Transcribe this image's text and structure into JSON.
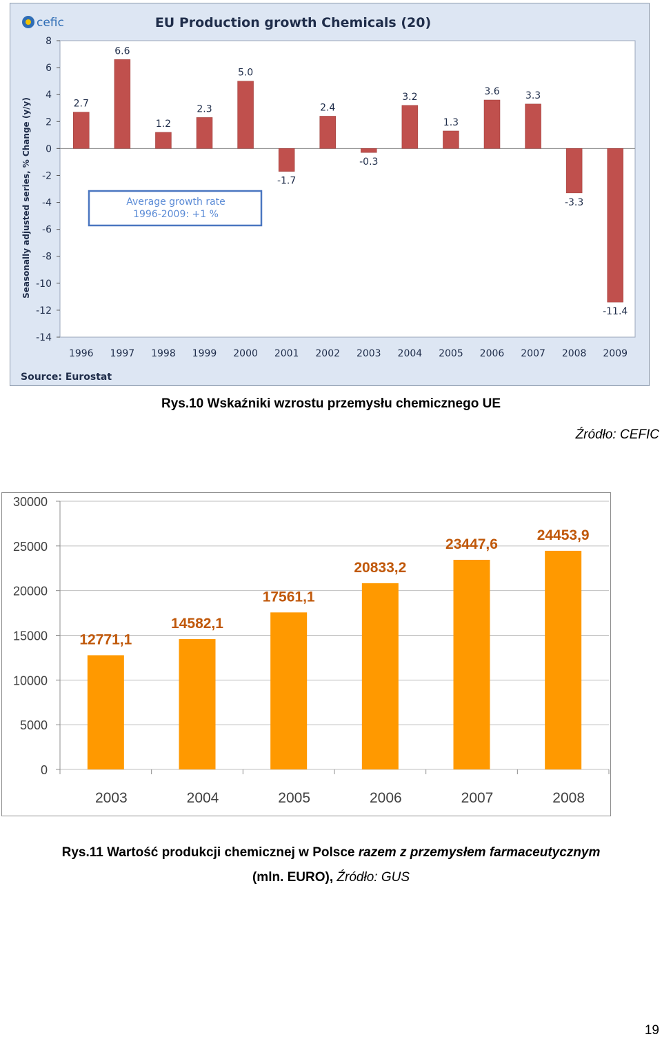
{
  "chart_data": [
    {
      "type": "bar",
      "title": "EU Production growth Chemicals (20)",
      "ylabel": "Seasonally adjusted series, % Change (y/y)",
      "xlabel": "",
      "categories": [
        "1996",
        "1997",
        "1998",
        "1999",
        "2000",
        "2001",
        "2002",
        "2003",
        "2004",
        "2005",
        "2006",
        "2007",
        "2008",
        "2009"
      ],
      "values": [
        2.7,
        6.6,
        1.2,
        2.3,
        5.0,
        -1.7,
        2.4,
        -0.3,
        3.2,
        1.3,
        3.6,
        3.3,
        -3.3,
        -11.4
      ],
      "value_labels": [
        "2.7",
        "6.6",
        "1.2",
        "2.3",
        "5.0",
        "-1.7",
        "2.4",
        "-0.3",
        "3.2",
        "1.3",
        "3.6",
        "3.3",
        "-3.3",
        "-11.4"
      ],
      "ylim": [
        -14,
        8
      ],
      "yticks": [
        "8",
        "6",
        "4",
        "2",
        "0",
        "-2",
        "-4",
        "-6",
        "-8",
        "-10",
        "-12",
        "-14"
      ],
      "annotation": {
        "line1": "Average growth rate",
        "line2": "1996-2009: +1 %"
      },
      "source": "Source: Eurostat",
      "logo": "cefic",
      "bar_color": "#c0504d",
      "grid": false
    },
    {
      "type": "bar",
      "title": "",
      "xlabel": "",
      "ylabel": "",
      "categories": [
        "2003",
        "2004",
        "2005",
        "2006",
        "2007",
        "2008"
      ],
      "values": [
        12771.1,
        14582.1,
        17561.1,
        20833.2,
        23447.6,
        24453.9
      ],
      "value_labels": [
        "12771,1",
        "14582,1",
        "17561,1",
        "20833,2",
        "23447,6",
        "24453,9"
      ],
      "ylim": [
        0,
        30000
      ],
      "yticks": [
        "30000",
        "25000",
        "20000",
        "15000",
        "10000",
        "5000",
        "0"
      ],
      "bar_color": "#ff9900",
      "label_color": "#c0580a",
      "grid": true
    }
  ],
  "captions": {
    "fig1": "Rys.10 Wskaźniki  wzrostu przemysłu chemicznego UE",
    "fig1_source": "Źródło: CEFIC",
    "fig2_prefix": "Rys.11 Wartość produkcji chemicznej w Polsce ",
    "fig2_italic": "razem z przemysłem farmaceutycznym",
    "fig2_line2_prefix": "(mln. EURO), ",
    "fig2_line2_source": "Źródło: GUS"
  },
  "page_number": "19"
}
